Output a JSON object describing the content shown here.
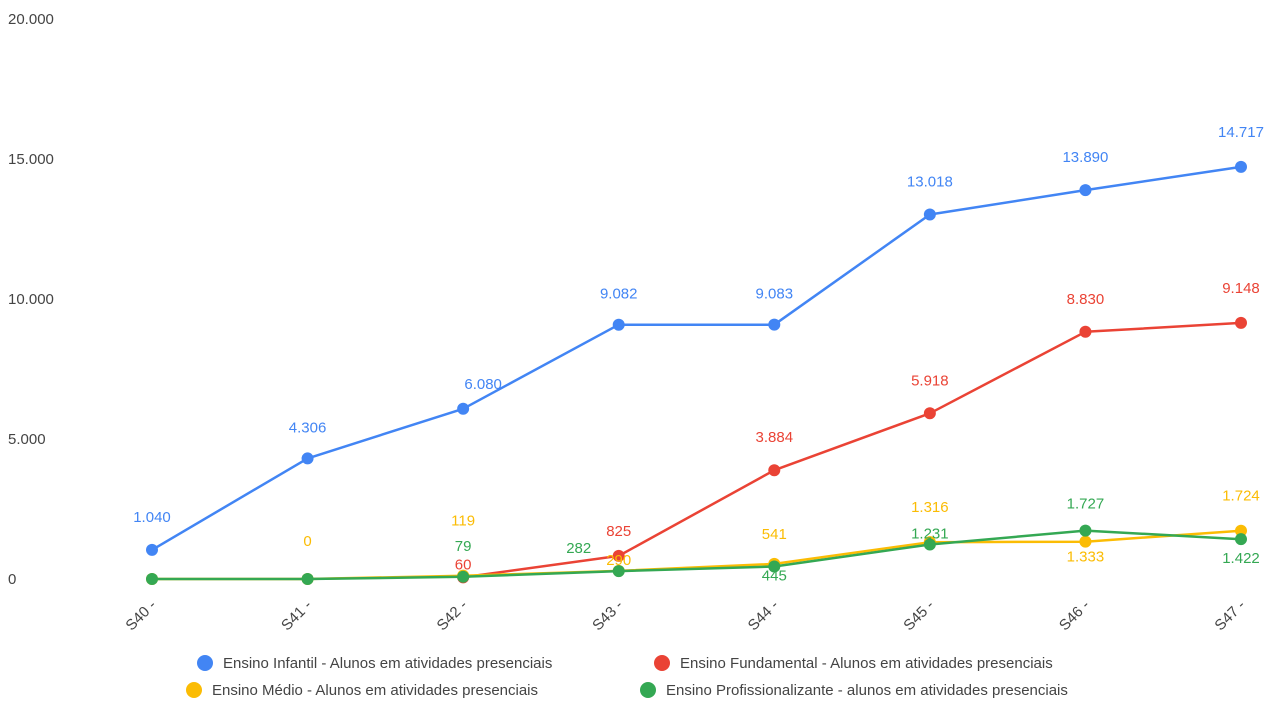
{
  "chart_data": {
    "type": "line",
    "title": "",
    "xlabel": "",
    "ylabel": "",
    "categories": [
      "S40 -",
      "S41 -",
      "S42 -",
      "S43 -",
      "S44 -",
      "S45 -",
      "S46 -",
      "S47 -"
    ],
    "ylim": [
      0,
      20000
    ],
    "y_ticks": [
      0,
      5000,
      10000,
      15000,
      20000
    ],
    "y_tick_labels": [
      "0",
      "5.000",
      "10.000",
      "15.000",
      "20.000"
    ],
    "grid": false,
    "legend_position": "bottom",
    "series": [
      {
        "name": "Ensino Infantil - Alunos em atividades presenciais",
        "color": "#4285F4",
        "values": [
          1040,
          4306,
          6080,
          9082,
          9083,
          13018,
          13890,
          14717
        ],
        "labels": [
          "1.040",
          "4.306",
          "6.080",
          "9.082",
          "9.083",
          "13.018",
          "13.890",
          "14.717"
        ]
      },
      {
        "name": "Ensino Fundamental - Alunos em atividades presenciais",
        "color": "#EA4335",
        "values": [
          null,
          null,
          60,
          825,
          3884,
          5918,
          8830,
          9148
        ],
        "labels": [
          "",
          "",
          "60",
          "825",
          "3.884",
          "5.918",
          "8.830",
          "9.148"
        ]
      },
      {
        "name": "Ensino Médio - Alunos em atividades presenciais",
        "color": "#FBBC04",
        "values": [
          0,
          0,
          119,
          290,
          541,
          1316,
          1333,
          1724
        ],
        "labels": [
          "",
          "0",
          "119",
          "290",
          "541",
          "1.316",
          "1.333",
          "1.724"
        ]
      },
      {
        "name": "Ensino Profissionalizante - alunos em atividades presenciais",
        "color": "#34A853",
        "values": [
          0,
          0,
          79,
          282,
          445,
          1231,
          1727,
          1422
        ],
        "labels": [
          "",
          "",
          "79",
          "282",
          "445",
          "1.231",
          "1.727",
          "1.422"
        ]
      }
    ]
  }
}
